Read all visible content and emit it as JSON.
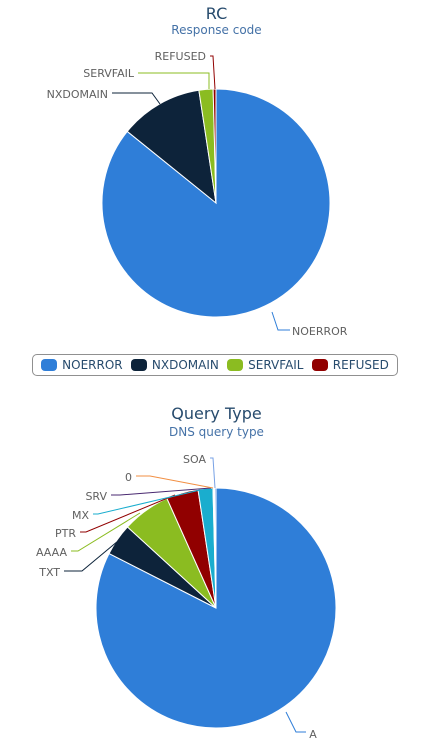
{
  "chart_data": [
    {
      "id": "rc",
      "type": "pie",
      "title": "RC",
      "subtitle": "Response code",
      "categories": [
        "NOERROR",
        "NXDOMAIN",
        "SERVFAIL",
        "REFUSED"
      ],
      "values": [
        85.8,
        11.8,
        2.0,
        0.4
      ],
      "colors": [
        "#2f7ed8",
        "#0d233a",
        "#8bbc21",
        "#910000"
      ],
      "legend": "bottom"
    },
    {
      "id": "qt",
      "type": "pie",
      "title": "Query Type",
      "subtitle": "DNS query type",
      "categories": [
        "A",
        "TXT",
        "AAAA",
        "PTR",
        "MX",
        "SRV",
        "0",
        "SOA"
      ],
      "values": [
        82.5,
        4.3,
        6.5,
        4.3,
        2.0,
        0.1,
        0.1,
        0.2
      ],
      "colors": [
        "#2f7ed8",
        "#0d233a",
        "#8bbc21",
        "#910000",
        "#1aadce",
        "#492970",
        "#f28f43",
        "#77a1e5"
      ]
    }
  ]
}
